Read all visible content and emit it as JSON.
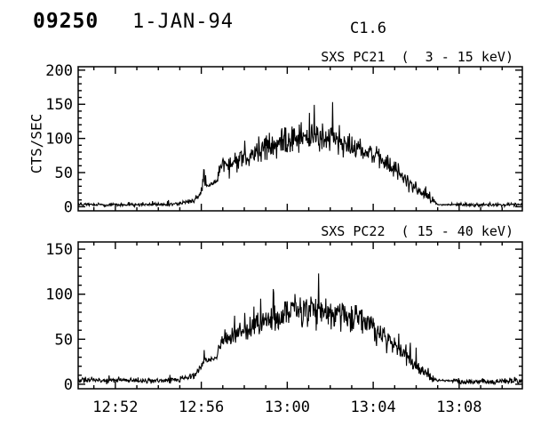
{
  "header": {
    "id": "09250",
    "date": "1-JAN-94",
    "flare_class": "C1.6"
  },
  "x_axis": {
    "tick_labels": [
      "12:52",
      "12:56",
      "13:00",
      "13:04",
      "13:08"
    ],
    "tick_minutes": [
      1.73,
      5.73,
      9.73,
      13.73,
      17.73
    ],
    "minor_step_min": 1,
    "first_minor_min": 0.73,
    "span_min": 20.67,
    "start_time": "12:50",
    "end_time": "13:11"
  },
  "chart_data": [
    {
      "type": "line",
      "panel": "top",
      "detector": "SXS PC21",
      "energy_band": "3 - 15 keV",
      "title": "SXS PC21  (  3 - 15 keV)",
      "ylabel": "CTS/SEC",
      "units": "counts/sec",
      "y_ticks": [
        0,
        50,
        100,
        150,
        200
      ],
      "y_minor_step": 10,
      "ylim_display": [
        0,
        200
      ],
      "value_range": [
        -6,
        205
      ],
      "peak_cts": 155,
      "plateau_mean_cts": 100,
      "background_cts": 3,
      "envelope_t_mean_amp": [
        [
          0,
          3,
          3
        ],
        [
          4.2,
          3,
          3
        ],
        [
          4.9,
          5,
          3.5
        ],
        [
          5.4,
          10,
          6
        ],
        [
          5.7,
          20,
          9
        ],
        [
          5.87,
          34,
          14
        ],
        [
          6.0,
          31,
          3
        ],
        [
          6.45,
          36,
          3
        ],
        [
          6.62,
          60,
          15
        ],
        [
          7.1,
          67,
          17
        ],
        [
          7.6,
          73,
          19
        ],
        [
          8.1,
          79,
          21
        ],
        [
          8.8,
          88,
          23
        ],
        [
          9.6,
          97,
          25
        ],
        [
          10.4,
          102,
          27
        ],
        [
          11.2,
          101,
          26
        ],
        [
          12.0,
          97,
          25
        ],
        [
          12.8,
          90,
          23
        ],
        [
          13.5,
          80,
          21
        ],
        [
          14.2,
          66,
          19
        ],
        [
          14.9,
          49,
          16
        ],
        [
          15.5,
          33,
          13
        ],
        [
          16.0,
          19,
          10
        ],
        [
          16.45,
          10,
          7
        ],
        [
          16.75,
          3,
          1
        ],
        [
          17.35,
          3,
          1
        ],
        [
          17.55,
          3,
          3
        ],
        [
          20.67,
          3,
          3
        ]
      ],
      "spikes_t_v": [
        [
          5.87,
          54
        ],
        [
          16.35,
          22
        ]
      ]
    },
    {
      "type": "line",
      "panel": "bottom",
      "detector": "SXS PC22",
      "energy_band": "15 - 40 keV",
      "title": "SXS PC22  ( 15 - 40 keV)",
      "ylabel": "",
      "units": "counts/sec",
      "y_ticks": [
        0,
        50,
        100,
        150
      ],
      "y_minor_step": 10,
      "ylim_display": [
        0,
        150
      ],
      "value_range": [
        -5,
        158
      ],
      "peak_cts": 120,
      "plateau_mean_cts": 83,
      "background_cts": 4,
      "envelope_t_mean_amp": [
        [
          0,
          4,
          3.5
        ],
        [
          4.2,
          4,
          3.5
        ],
        [
          4.9,
          6,
          4
        ],
        [
          5.4,
          10,
          5
        ],
        [
          5.7,
          18,
          7
        ],
        [
          5.87,
          28,
          9
        ],
        [
          6.0,
          26,
          3
        ],
        [
          6.45,
          30,
          3
        ],
        [
          6.62,
          47,
          11
        ],
        [
          7.1,
          53,
          13
        ],
        [
          7.6,
          59,
          15
        ],
        [
          8.1,
          65,
          16
        ],
        [
          8.8,
          72,
          17
        ],
        [
          9.6,
          78,
          19
        ],
        [
          10.4,
          83,
          20
        ],
        [
          11.2,
          83,
          20
        ],
        [
          12.0,
          80,
          19
        ],
        [
          12.8,
          75,
          18
        ],
        [
          13.5,
          66,
          16
        ],
        [
          14.2,
          55,
          14
        ],
        [
          14.9,
          41,
          12
        ],
        [
          15.5,
          27,
          10
        ],
        [
          16.0,
          15,
          8
        ],
        [
          16.45,
          8,
          6
        ],
        [
          16.75,
          4,
          1
        ],
        [
          17.3,
          4,
          1
        ],
        [
          17.5,
          3,
          3.5
        ],
        [
          20.67,
          3,
          3.5
        ]
      ],
      "spikes_t_v": [
        [
          5.87,
          38
        ],
        [
          16.3,
          18
        ]
      ]
    }
  ],
  "colors": {
    "foreground": "#000000",
    "background": "#ffffff"
  }
}
